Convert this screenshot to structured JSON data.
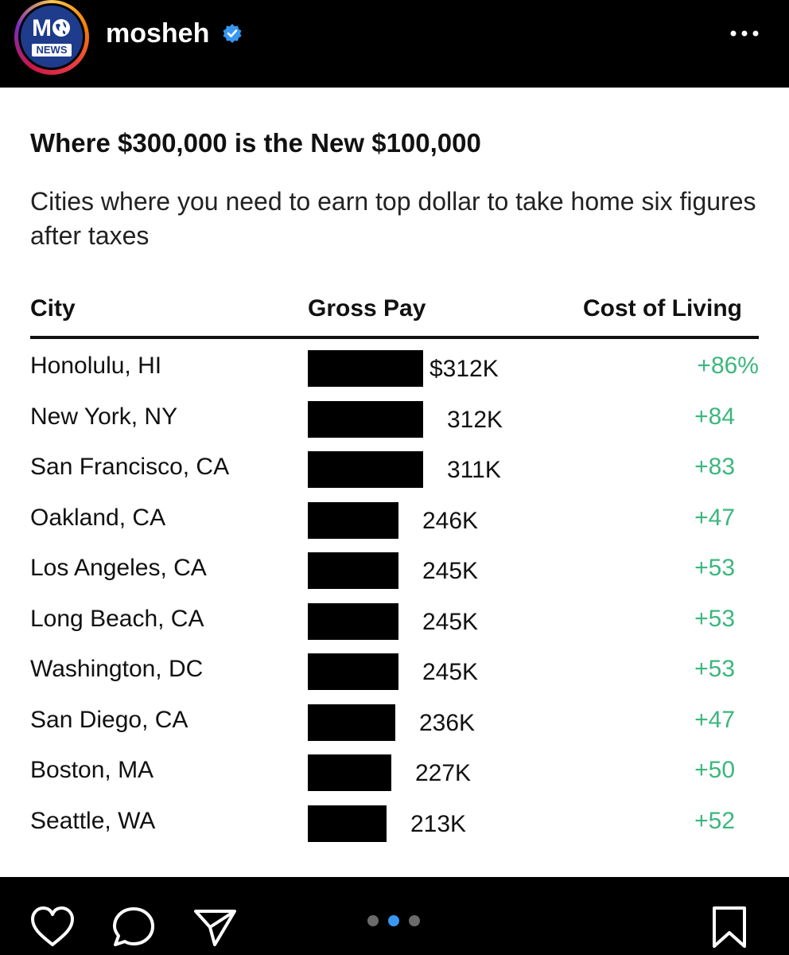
{
  "header": {
    "avatar_top": "M",
    "avatar_news": "NEWS",
    "username": "mosheh"
  },
  "post": {
    "title": "Where $300,000 is the New $100,000",
    "subtitle": "Cities where you need to earn top dollar to take home six figures after taxes",
    "columns": {
      "city": "City",
      "gross": "Gross Pay",
      "cost": "Cost of Living"
    },
    "rows": [
      {
        "city": "Honolulu, HI",
        "gross": 312,
        "gross_label": "$312K",
        "cost": "+86%"
      },
      {
        "city": "New York, NY",
        "gross": 312,
        "gross_label": "312K",
        "cost": "+84"
      },
      {
        "city": "San Francisco, CA",
        "gross": 311,
        "gross_label": "311K",
        "cost": "+83"
      },
      {
        "city": "Oakland, CA",
        "gross": 246,
        "gross_label": "246K",
        "cost": "+47"
      },
      {
        "city": "Los Angeles, CA",
        "gross": 245,
        "gross_label": "245K",
        "cost": "+53"
      },
      {
        "city": "Long Beach, CA",
        "gross": 245,
        "gross_label": "245K",
        "cost": "+53"
      },
      {
        "city": "Washington, DC",
        "gross": 245,
        "gross_label": "245K",
        "cost": "+53"
      },
      {
        "city": "San Diego, CA",
        "gross": 236,
        "gross_label": "236K",
        "cost": "+47"
      },
      {
        "city": "Boston, MA",
        "gross": 227,
        "gross_label": "227K",
        "cost": "+50"
      },
      {
        "city": "Seattle, WA",
        "gross": 213,
        "gross_label": "213K",
        "cost": "+52"
      }
    ]
  },
  "carousel": {
    "count": 3,
    "active_index": 1
  },
  "icons": {
    "verified": "verified-badge-icon",
    "more": "more-options-icon",
    "like": "heart-icon",
    "comment": "comment-icon",
    "share": "send-icon",
    "save": "bookmark-icon"
  },
  "colors": {
    "background": "#000000",
    "card": "#ffffff",
    "positive": "#3bb77e",
    "verified": "#3897f0",
    "dot_active": "#3897f0",
    "dot_inactive": "#6b6b6b"
  }
}
